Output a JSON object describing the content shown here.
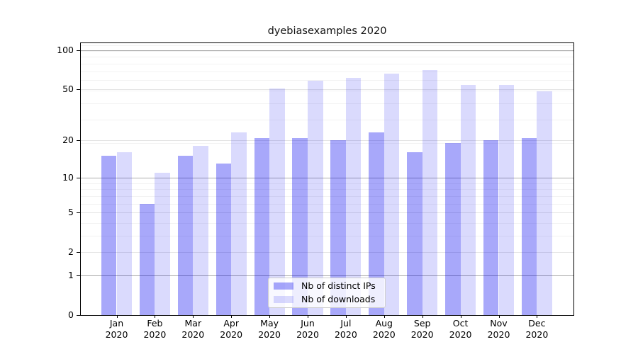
{
  "title": "dyebiasexamples 2020",
  "legend": {
    "items": [
      {
        "label": "Nb of distinct IPs",
        "series_key": "distinct_ips"
      },
      {
        "label": "Nb of downloads",
        "series_key": "downloads"
      }
    ]
  },
  "colors": {
    "distinct_ips_apparent": "#a8a8fa",
    "downloads_apparent": "#dadafc",
    "grid_emphasis": "#ababab",
    "grid_major": "#e4e4e4",
    "grid_minor": "#f2f2f2",
    "axis": "#000000",
    "legend_border": "#d0d0d0"
  },
  "chart_data": {
    "type": "bar",
    "title": "dyebiasexamples 2020",
    "categories": [
      "Jan",
      "Feb",
      "Mar",
      "Apr",
      "May",
      "Jun",
      "Jul",
      "Aug",
      "Sep",
      "Oct",
      "Nov",
      "Dec"
    ],
    "year_label": "2020",
    "series": [
      {
        "name": "Nb of distinct IPs",
        "values": [
          15,
          6,
          15,
          13,
          21,
          21,
          20,
          23,
          16,
          19,
          20,
          21
        ]
      },
      {
        "name": "Nb of downloads",
        "values": [
          16,
          11,
          18,
          23,
          51,
          58,
          61,
          66,
          70,
          54,
          54,
          48
        ]
      }
    ],
    "yscale": "log10(1+value)",
    "yticks": [
      0,
      1,
      2,
      5,
      10,
      20,
      50,
      100
    ],
    "emphasized_gridlines": [
      1,
      10,
      100
    ],
    "ylim": [
      0,
      113
    ],
    "grid": true,
    "legend_position": "lower center"
  }
}
